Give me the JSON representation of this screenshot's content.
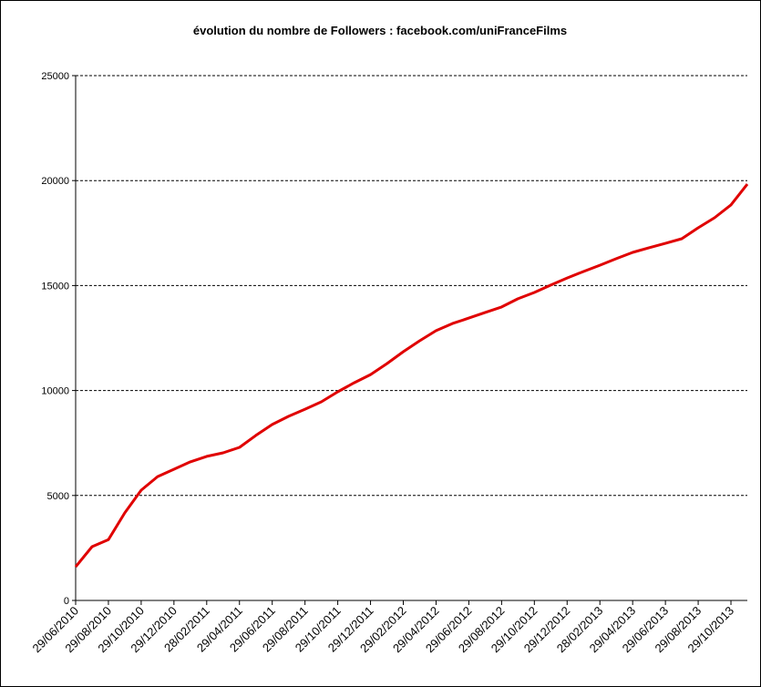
{
  "chart_data": {
    "type": "line",
    "title": "évolution du nombre de Followers : facebook.com/uniFranceFilms",
    "categories": [
      "29/06/2010",
      null,
      "29/08/2010",
      null,
      "29/10/2010",
      null,
      "29/12/2010",
      null,
      "28/02/2011",
      null,
      "29/04/2011",
      null,
      "29/06/2011",
      null,
      "29/08/2011",
      null,
      "29/10/2011",
      null,
      "29/12/2011",
      null,
      "29/02/2012",
      null,
      "29/04/2012",
      null,
      "29/06/2012",
      null,
      "29/08/2012",
      null,
      "29/10/2012",
      null,
      "29/12/2012",
      null,
      "28/02/2013",
      null,
      "29/04/2013",
      null,
      "29/06/2013",
      null,
      "29/08/2013",
      null,
      "29/10/2013",
      null
    ],
    "series": [
      {
        "color": "#e00000",
        "values": [
          1600,
          2560,
          2900,
          4170,
          5250,
          5900,
          6250,
          6600,
          6860,
          7030,
          7290,
          7860,
          8380,
          8770,
          9110,
          9460,
          9940,
          10370,
          10760,
          11280,
          11850,
          12370,
          12850,
          13190,
          13450,
          13720,
          13980,
          14370,
          14670,
          15020,
          15360,
          15670,
          15970,
          16280,
          16580,
          16800,
          17010,
          17230,
          17750,
          18230,
          18840,
          19830
        ]
      }
    ],
    "ylim": [
      0,
      25000
    ],
    "yticks": [
      0,
      5000,
      10000,
      15000,
      20000,
      25000
    ],
    "grid": true
  }
}
